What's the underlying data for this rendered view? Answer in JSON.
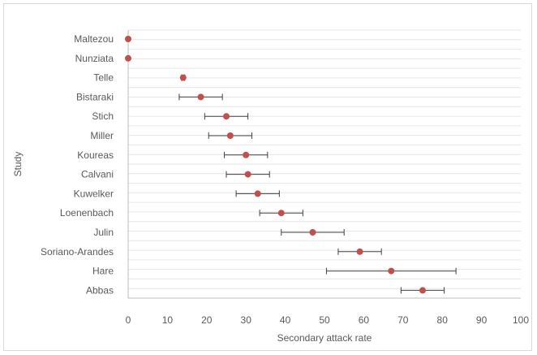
{
  "chart_data": {
    "type": "scatter",
    "subtype": "forest-plot",
    "title": "",
    "xlabel": "Secondary attack rate",
    "ylabel": "Study",
    "xlim": [
      0,
      100
    ],
    "xticks": [
      0,
      10,
      20,
      30,
      40,
      50,
      60,
      70,
      80,
      90,
      100
    ],
    "grid": "horizontal",
    "legend": "none",
    "colors": {
      "point": "#c0504d",
      "error_bar": "#404040",
      "grid": "#e6e6e6",
      "axis": "#bfbfbf"
    },
    "studies": [
      {
        "study": "Maltezou",
        "rate": 0,
        "lower": 0,
        "upper": 0
      },
      {
        "study": "Nunziata",
        "rate": 0,
        "lower": 0,
        "upper": 0
      },
      {
        "study": "Telle",
        "rate": 14,
        "lower": 13.6,
        "upper": 14.4
      },
      {
        "study": "Bistaraki",
        "rate": 18.5,
        "lower": 13,
        "upper": 24
      },
      {
        "study": "Stich",
        "rate": 25,
        "lower": 19.5,
        "upper": 30.5
      },
      {
        "study": "Miller",
        "rate": 26,
        "lower": 20.5,
        "upper": 31.5
      },
      {
        "study": "Koureas",
        "rate": 30,
        "lower": 24.5,
        "upper": 35.5
      },
      {
        "study": "Calvani",
        "rate": 30.5,
        "lower": 25,
        "upper": 36
      },
      {
        "study": "Kuwelker",
        "rate": 33,
        "lower": 27.5,
        "upper": 38.5
      },
      {
        "study": "Loenenbach",
        "rate": 39,
        "lower": 33.5,
        "upper": 44.5
      },
      {
        "study": "Julin",
        "rate": 47,
        "lower": 39,
        "upper": 55
      },
      {
        "study": "Soriano-Arandes",
        "rate": 59,
        "lower": 53.5,
        "upper": 64.5
      },
      {
        "study": "Hare",
        "rate": 67,
        "lower": 50.5,
        "upper": 83.5
      },
      {
        "study": "Abbas",
        "rate": 75,
        "lower": 69.5,
        "upper": 80.5
      }
    ]
  }
}
